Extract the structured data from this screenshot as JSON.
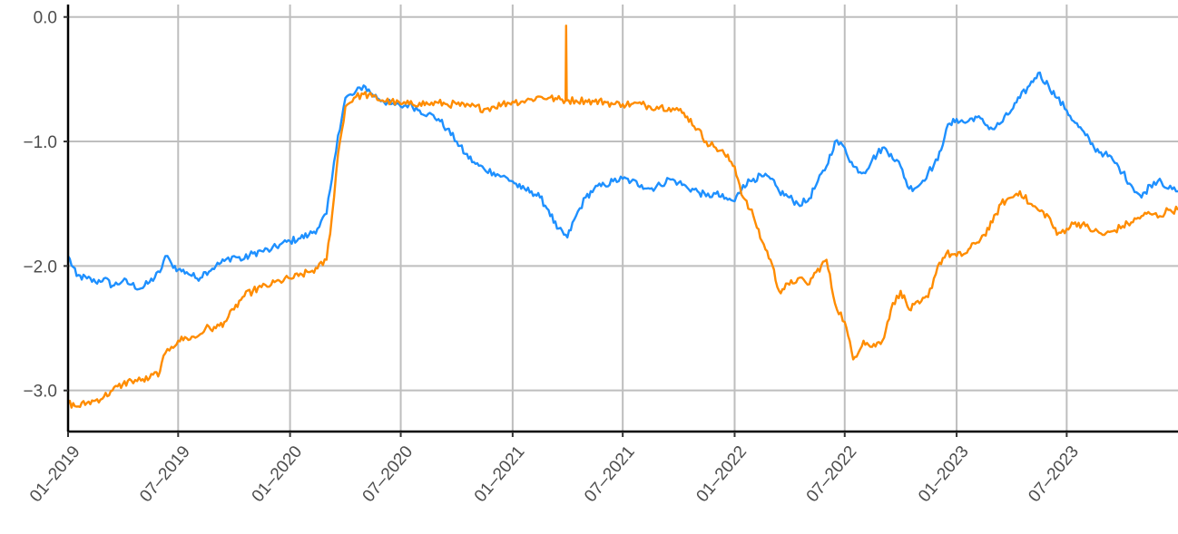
{
  "chart_data": {
    "type": "line",
    "title": "",
    "xlabel": "",
    "ylabel": "",
    "x_axis": {
      "type": "date",
      "range": [
        "2019-01-01",
        "2023-12-31"
      ],
      "tick_values": [
        "2019-01-01",
        "2019-07-01",
        "2020-01-01",
        "2020-07-01",
        "2021-01-01",
        "2021-07-01",
        "2022-01-01",
        "2022-07-01",
        "2023-01-01",
        "2023-07-01"
      ],
      "tick_labels": [
        "01–2019",
        "07–2019",
        "01–2020",
        "07–2020",
        "01–2021",
        "07–2021",
        "01–2022",
        "07–2022",
        "01–2023",
        "07–2023"
      ],
      "tick_label_rotation": -50
    },
    "y_axis": {
      "range": [
        -3.33,
        0.1
      ],
      "tick_values": [
        0,
        -1,
        -2,
        -3
      ],
      "tick_labels": [
        "0.0",
        "−1.0",
        "−2.0",
        "−3.0"
      ]
    },
    "grid": true,
    "legend": "none",
    "series": [
      {
        "color": "#1E90FF",
        "points": [
          [
            "2019-01-01",
            -1.92
          ],
          [
            "2019-01-15",
            -2.08
          ],
          [
            "2019-02-01",
            -2.1
          ],
          [
            "2019-02-15",
            -2.13
          ],
          [
            "2019-03-01",
            -2.1
          ],
          [
            "2019-03-15",
            -2.16
          ],
          [
            "2019-04-01",
            -2.12
          ],
          [
            "2019-04-15",
            -2.15
          ],
          [
            "2019-05-01",
            -2.18
          ],
          [
            "2019-05-15",
            -2.13
          ],
          [
            "2019-06-01",
            -2.05
          ],
          [
            "2019-06-10",
            -1.92
          ],
          [
            "2019-06-20",
            -1.98
          ],
          [
            "2019-07-01",
            -2.03
          ],
          [
            "2019-07-15",
            -2.05
          ],
          [
            "2019-08-01",
            -2.1
          ],
          [
            "2019-08-15",
            -2.05
          ],
          [
            "2019-09-01",
            -2.0
          ],
          [
            "2019-09-15",
            -1.96
          ],
          [
            "2019-10-01",
            -1.92
          ],
          [
            "2019-10-15",
            -1.95
          ],
          [
            "2019-11-01",
            -1.9
          ],
          [
            "2019-11-15",
            -1.88
          ],
          [
            "2019-12-01",
            -1.87
          ],
          [
            "2019-12-15",
            -1.83
          ],
          [
            "2020-01-01",
            -1.8
          ],
          [
            "2020-01-15",
            -1.78
          ],
          [
            "2020-02-01",
            -1.75
          ],
          [
            "2020-02-15",
            -1.7
          ],
          [
            "2020-03-01",
            -1.58
          ],
          [
            "2020-03-10",
            -1.3
          ],
          [
            "2020-03-20",
            -0.95
          ],
          [
            "2020-04-01",
            -0.65
          ],
          [
            "2020-04-15",
            -0.62
          ],
          [
            "2020-05-01",
            -0.55
          ],
          [
            "2020-05-15",
            -0.62
          ],
          [
            "2020-06-01",
            -0.67
          ],
          [
            "2020-06-15",
            -0.7
          ],
          [
            "2020-07-01",
            -0.72
          ],
          [
            "2020-07-15",
            -0.7
          ],
          [
            "2020-08-01",
            -0.75
          ],
          [
            "2020-08-15",
            -0.78
          ],
          [
            "2020-09-01",
            -0.82
          ],
          [
            "2020-09-15",
            -0.9
          ],
          [
            "2020-10-01",
            -1.0
          ],
          [
            "2020-10-15",
            -1.1
          ],
          [
            "2020-11-01",
            -1.18
          ],
          [
            "2020-11-15",
            -1.22
          ],
          [
            "2020-12-01",
            -1.25
          ],
          [
            "2020-12-15",
            -1.28
          ],
          [
            "2021-01-01",
            -1.32
          ],
          [
            "2021-01-15",
            -1.38
          ],
          [
            "2021-02-01",
            -1.4
          ],
          [
            "2021-02-15",
            -1.45
          ],
          [
            "2021-03-01",
            -1.55
          ],
          [
            "2021-03-15",
            -1.7
          ],
          [
            "2021-04-01",
            -1.77
          ],
          [
            "2021-04-15",
            -1.6
          ],
          [
            "2021-05-01",
            -1.45
          ],
          [
            "2021-05-15",
            -1.38
          ],
          [
            "2021-06-01",
            -1.35
          ],
          [
            "2021-06-15",
            -1.32
          ],
          [
            "2021-07-01",
            -1.3
          ],
          [
            "2021-07-15",
            -1.32
          ],
          [
            "2021-08-01",
            -1.35
          ],
          [
            "2021-08-15",
            -1.38
          ],
          [
            "2021-09-01",
            -1.35
          ],
          [
            "2021-09-15",
            -1.3
          ],
          [
            "2021-10-01",
            -1.33
          ],
          [
            "2021-10-15",
            -1.37
          ],
          [
            "2021-11-01",
            -1.4
          ],
          [
            "2021-11-15",
            -1.44
          ],
          [
            "2021-12-01",
            -1.42
          ],
          [
            "2021-12-15",
            -1.46
          ],
          [
            "2022-01-01",
            -1.48
          ],
          [
            "2022-01-15",
            -1.35
          ],
          [
            "2022-02-01",
            -1.3
          ],
          [
            "2022-02-15",
            -1.28
          ],
          [
            "2022-03-01",
            -1.3
          ],
          [
            "2022-03-15",
            -1.4
          ],
          [
            "2022-04-01",
            -1.45
          ],
          [
            "2022-04-15",
            -1.5
          ],
          [
            "2022-05-01",
            -1.48
          ],
          [
            "2022-05-15",
            -1.35
          ],
          [
            "2022-06-01",
            -1.2
          ],
          [
            "2022-06-15",
            -1.0
          ],
          [
            "2022-07-01",
            -1.05
          ],
          [
            "2022-07-15",
            -1.2
          ],
          [
            "2022-08-01",
            -1.25
          ],
          [
            "2022-08-15",
            -1.15
          ],
          [
            "2022-09-01",
            -1.05
          ],
          [
            "2022-09-15",
            -1.1
          ],
          [
            "2022-10-01",
            -1.2
          ],
          [
            "2022-10-15",
            -1.38
          ],
          [
            "2022-11-01",
            -1.35
          ],
          [
            "2022-11-15",
            -1.25
          ],
          [
            "2022-12-01",
            -1.15
          ],
          [
            "2022-12-15",
            -0.9
          ],
          [
            "2023-01-01",
            -0.82
          ],
          [
            "2023-01-15",
            -0.85
          ],
          [
            "2023-02-01",
            -0.8
          ],
          [
            "2023-02-15",
            -0.85
          ],
          [
            "2023-03-01",
            -0.9
          ],
          [
            "2023-03-15",
            -0.85
          ],
          [
            "2023-04-01",
            -0.75
          ],
          [
            "2023-04-15",
            -0.65
          ],
          [
            "2023-05-01",
            -0.55
          ],
          [
            "2023-05-15",
            -0.45
          ],
          [
            "2023-06-01",
            -0.55
          ],
          [
            "2023-06-15",
            -0.65
          ],
          [
            "2023-07-01",
            -0.75
          ],
          [
            "2023-07-15",
            -0.85
          ],
          [
            "2023-08-01",
            -0.95
          ],
          [
            "2023-08-15",
            -1.05
          ],
          [
            "2023-09-01",
            -1.1
          ],
          [
            "2023-09-15",
            -1.15
          ],
          [
            "2023-10-01",
            -1.25
          ],
          [
            "2023-10-15",
            -1.35
          ],
          [
            "2023-11-01",
            -1.45
          ],
          [
            "2023-11-15",
            -1.35
          ],
          [
            "2023-12-01",
            -1.3
          ],
          [
            "2023-12-15",
            -1.38
          ],
          [
            "2023-12-31",
            -1.4
          ]
        ]
      },
      {
        "color": "#FF8C00",
        "points": [
          [
            "2019-01-01",
            -3.1
          ],
          [
            "2019-01-15",
            -3.13
          ],
          [
            "2019-02-01",
            -3.1
          ],
          [
            "2019-02-15",
            -3.08
          ],
          [
            "2019-03-01",
            -3.05
          ],
          [
            "2019-03-15",
            -3.0
          ],
          [
            "2019-04-01",
            -2.95
          ],
          [
            "2019-04-15",
            -2.92
          ],
          [
            "2019-05-01",
            -2.92
          ],
          [
            "2019-05-15",
            -2.9
          ],
          [
            "2019-06-01",
            -2.85
          ],
          [
            "2019-06-10",
            -2.7
          ],
          [
            "2019-06-20",
            -2.65
          ],
          [
            "2019-07-01",
            -2.6
          ],
          [
            "2019-07-15",
            -2.58
          ],
          [
            "2019-08-01",
            -2.57
          ],
          [
            "2019-08-15",
            -2.5
          ],
          [
            "2019-09-01",
            -2.5
          ],
          [
            "2019-09-15",
            -2.45
          ],
          [
            "2019-10-01",
            -2.35
          ],
          [
            "2019-10-15",
            -2.25
          ],
          [
            "2019-11-01",
            -2.2
          ],
          [
            "2019-11-15",
            -2.17
          ],
          [
            "2019-12-01",
            -2.15
          ],
          [
            "2019-12-15",
            -2.12
          ],
          [
            "2020-01-01",
            -2.1
          ],
          [
            "2020-01-15",
            -2.08
          ],
          [
            "2020-02-01",
            -2.05
          ],
          [
            "2020-02-15",
            -2.02
          ],
          [
            "2020-03-01",
            -1.95
          ],
          [
            "2020-03-10",
            -1.6
          ],
          [
            "2020-03-20",
            -1.1
          ],
          [
            "2020-04-01",
            -0.72
          ],
          [
            "2020-04-15",
            -0.65
          ],
          [
            "2020-05-01",
            -0.62
          ],
          [
            "2020-05-15",
            -0.64
          ],
          [
            "2020-06-01",
            -0.67
          ],
          [
            "2020-06-15",
            -0.68
          ],
          [
            "2020-07-01",
            -0.7
          ],
          [
            "2020-07-15",
            -0.7
          ],
          [
            "2020-08-01",
            -0.69
          ],
          [
            "2020-08-15",
            -0.7
          ],
          [
            "2020-09-01",
            -0.69
          ],
          [
            "2020-09-15",
            -0.7
          ],
          [
            "2020-10-01",
            -0.7
          ],
          [
            "2020-10-15",
            -0.72
          ],
          [
            "2020-11-01",
            -0.72
          ],
          [
            "2020-11-15",
            -0.74
          ],
          [
            "2020-12-01",
            -0.72
          ],
          [
            "2020-12-15",
            -0.7
          ],
          [
            "2021-01-01",
            -0.68
          ],
          [
            "2021-01-15",
            -0.68
          ],
          [
            "2021-02-01",
            -0.66
          ],
          [
            "2021-02-15",
            -0.64
          ],
          [
            "2021-03-01",
            -0.65
          ],
          [
            "2021-03-15",
            -0.66
          ],
          [
            "2021-03-29",
            -0.67
          ],
          [
            "2021-03-30",
            -0.07
          ],
          [
            "2021-03-31",
            -0.67
          ],
          [
            "2021-04-15",
            -0.67
          ],
          [
            "2021-05-01",
            -0.67
          ],
          [
            "2021-05-15",
            -0.68
          ],
          [
            "2021-06-01",
            -0.68
          ],
          [
            "2021-06-15",
            -0.7
          ],
          [
            "2021-07-01",
            -0.7
          ],
          [
            "2021-07-15",
            -0.7
          ],
          [
            "2021-08-01",
            -0.7
          ],
          [
            "2021-08-15",
            -0.72
          ],
          [
            "2021-09-01",
            -0.72
          ],
          [
            "2021-09-15",
            -0.73
          ],
          [
            "2021-10-01",
            -0.75
          ],
          [
            "2021-10-15",
            -0.8
          ],
          [
            "2021-11-01",
            -0.9
          ],
          [
            "2021-11-15",
            -1.0
          ],
          [
            "2021-12-01",
            -1.05
          ],
          [
            "2021-12-15",
            -1.1
          ],
          [
            "2022-01-01",
            -1.2
          ],
          [
            "2022-01-15",
            -1.45
          ],
          [
            "2022-02-01",
            -1.6
          ],
          [
            "2022-02-15",
            -1.8
          ],
          [
            "2022-03-01",
            -1.95
          ],
          [
            "2022-03-15",
            -2.2
          ],
          [
            "2022-04-01",
            -2.15
          ],
          [
            "2022-04-15",
            -2.1
          ],
          [
            "2022-05-01",
            -2.15
          ],
          [
            "2022-05-15",
            -2.05
          ],
          [
            "2022-06-01",
            -1.95
          ],
          [
            "2022-06-15",
            -2.3
          ],
          [
            "2022-07-01",
            -2.45
          ],
          [
            "2022-07-15",
            -2.75
          ],
          [
            "2022-08-01",
            -2.6
          ],
          [
            "2022-08-15",
            -2.65
          ],
          [
            "2022-09-01",
            -2.6
          ],
          [
            "2022-09-15",
            -2.35
          ],
          [
            "2022-10-01",
            -2.2
          ],
          [
            "2022-10-15",
            -2.35
          ],
          [
            "2022-11-01",
            -2.3
          ],
          [
            "2022-11-15",
            -2.25
          ],
          [
            "2022-12-01",
            -2.0
          ],
          [
            "2022-12-15",
            -1.9
          ],
          [
            "2023-01-01",
            -1.92
          ],
          [
            "2023-01-15",
            -1.9
          ],
          [
            "2023-02-01",
            -1.82
          ],
          [
            "2023-02-15",
            -1.75
          ],
          [
            "2023-03-01",
            -1.65
          ],
          [
            "2023-03-15",
            -1.5
          ],
          [
            "2023-04-01",
            -1.45
          ],
          [
            "2023-04-15",
            -1.4
          ],
          [
            "2023-05-01",
            -1.5
          ],
          [
            "2023-05-15",
            -1.55
          ],
          [
            "2023-06-01",
            -1.6
          ],
          [
            "2023-06-15",
            -1.75
          ],
          [
            "2023-07-01",
            -1.7
          ],
          [
            "2023-07-15",
            -1.65
          ],
          [
            "2023-08-01",
            -1.68
          ],
          [
            "2023-08-15",
            -1.72
          ],
          [
            "2023-09-01",
            -1.75
          ],
          [
            "2023-09-15",
            -1.72
          ],
          [
            "2023-10-01",
            -1.68
          ],
          [
            "2023-10-15",
            -1.65
          ],
          [
            "2023-11-01",
            -1.6
          ],
          [
            "2023-11-15",
            -1.58
          ],
          [
            "2023-12-01",
            -1.6
          ],
          [
            "2023-12-15",
            -1.55
          ],
          [
            "2023-12-31",
            -1.55
          ]
        ]
      }
    ]
  }
}
